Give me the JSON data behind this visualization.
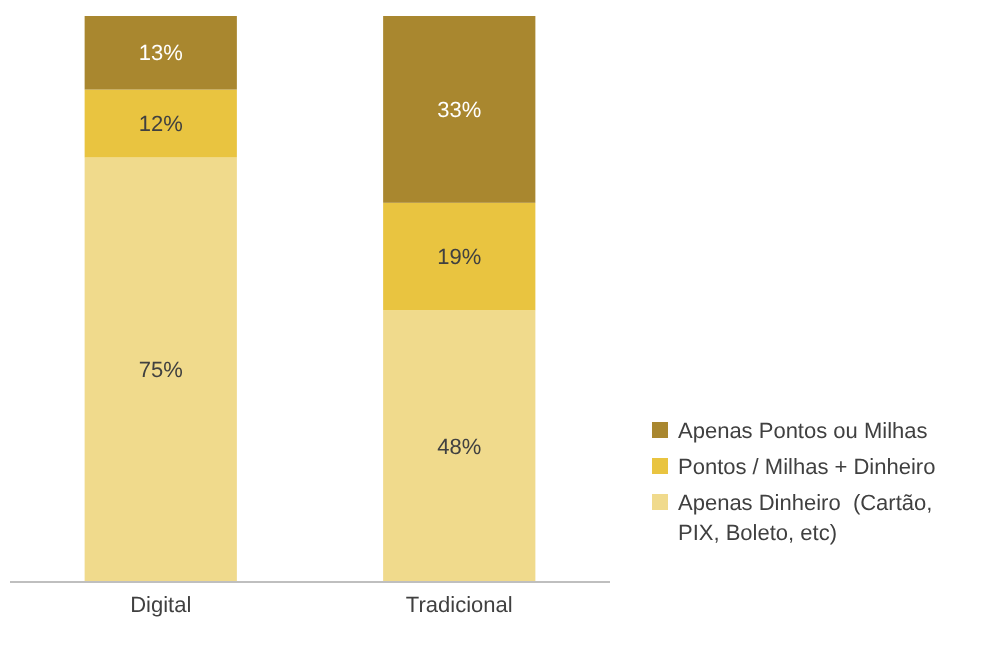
{
  "chart_data": {
    "type": "bar",
    "stacked": true,
    "categories": [
      "Digital",
      "Tradicional"
    ],
    "series": [
      {
        "name": "Apenas Dinheiro  (Cartão, PIX, Boleto, etc)",
        "color": "#f0da8c",
        "values": [
          75,
          48
        ],
        "value_labels": [
          "75%",
          "48%"
        ]
      },
      {
        "name": "Pontos / Milhas + Dinheiro",
        "color": "#e9c440",
        "values": [
          12,
          19
        ],
        "value_labels": [
          "12%",
          "19%"
        ]
      },
      {
        "name": "Apenas Pontos ou Milhas",
        "color": "#a9872f",
        "values": [
          13,
          33
        ],
        "value_labels": [
          "13%",
          "33%"
        ]
      }
    ],
    "legend": "right"
  }
}
